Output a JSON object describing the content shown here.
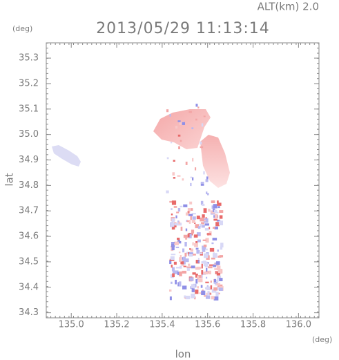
{
  "chart_data": {
    "type": "map",
    "title": "2013/05/29 11:13:14",
    "annotation": "ALT(km) 2.0",
    "x_label": "lon",
    "y_label": "lat",
    "x_unit": "(deg)",
    "y_unit": "(deg)",
    "xlim": [
      134.89,
      136.09
    ],
    "ylim": [
      34.28,
      35.36
    ],
    "xticks": [
      {
        "value": 135,
        "label": "135.0"
      },
      135.2,
      135.4,
      135.6,
      135.8,
      {
        "value": 136,
        "label": "136.0"
      }
    ],
    "yticks": [
      34.3,
      34.4,
      34.5,
      34.6,
      34.7,
      34.8,
      34.9,
      {
        "value": 35,
        "label": "35.0"
      },
      35.1,
      35.2,
      35.3
    ]
  }
}
